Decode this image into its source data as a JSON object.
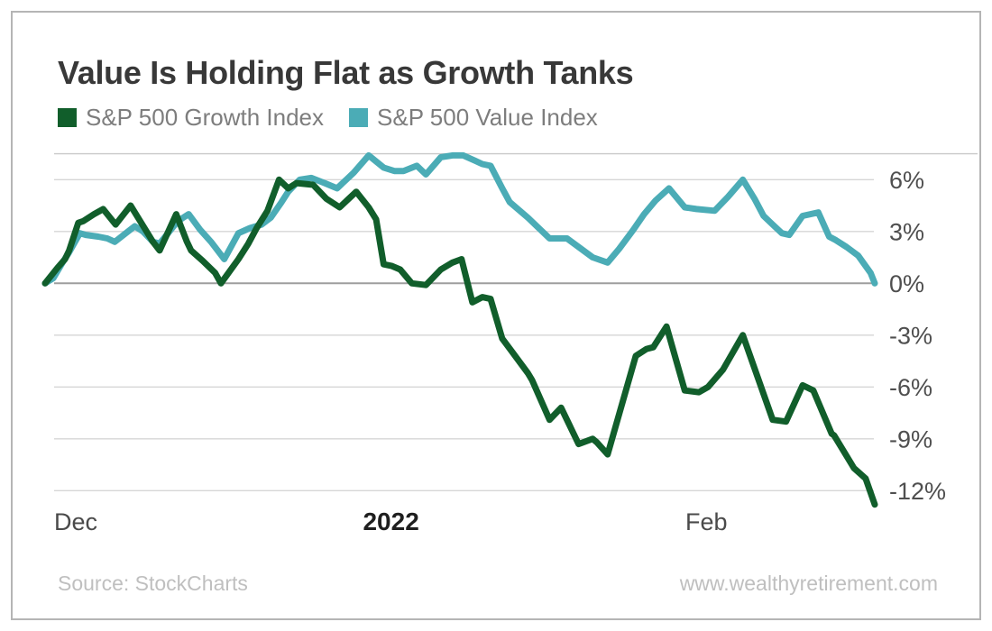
{
  "header": {
    "title": "Value Is Holding Flat as Growth Tanks"
  },
  "footer": {
    "source": "Source: StockCharts",
    "website": "www.wealthyretirement.com"
  },
  "colors": {
    "growth_line": "#115e2b",
    "value_line": "#4bacb6",
    "grid": "#d6d6d6",
    "zero_line": "#9e9e9e",
    "plot_border": "#c9c9c9",
    "title_text": "#383838",
    "legend_text": "#7d7d7d",
    "axis_text": "#4f4f4f",
    "footer_text": "#bfbfbf"
  },
  "chart_data": {
    "type": "line",
    "title": "Value Is Holding Flat as Growth Tanks",
    "xlabel": "",
    "ylabel": "",
    "grid": "horizontal",
    "legend_position": "top-left",
    "x_encoding": "percent_along_time_axis",
    "x_axis": {
      "ticks": [
        {
          "label": "Dec",
          "x": 3.7,
          "bold": false
        },
        {
          "label": "2022",
          "x": 41.7,
          "bold": true
        },
        {
          "label": "Feb",
          "x": 79.7,
          "bold": false
        }
      ]
    },
    "y_axis": {
      "side": "right",
      "ylim": [
        -13,
        7.5
      ],
      "ticks": [
        {
          "value": 6,
          "label": "6%"
        },
        {
          "value": 3,
          "label": "3%"
        },
        {
          "value": 0,
          "label": "0%"
        },
        {
          "value": -3,
          "label": "-3%"
        },
        {
          "value": -6,
          "label": "-6%"
        },
        {
          "value": -9,
          "label": "-9%"
        },
        {
          "value": -12,
          "label": "-12%"
        }
      ]
    },
    "series": [
      {
        "name": "S&P 500 Growth Index",
        "color": "#115e2b",
        "points": [
          [
            0,
            0
          ],
          [
            1.5,
            0.9
          ],
          [
            2.4,
            1.4
          ],
          [
            2.9,
            1.9
          ],
          [
            4,
            3.5
          ],
          [
            4.6,
            3.6
          ],
          [
            5.9,
            4
          ],
          [
            7,
            4.3
          ],
          [
            8.5,
            3.4
          ],
          [
            10.3,
            4.5
          ],
          [
            13,
            2.4
          ],
          [
            13.8,
            1.9
          ],
          [
            15.8,
            4
          ],
          [
            17.1,
            2.4
          ],
          [
            17.6,
            1.9
          ],
          [
            19,
            1.3
          ],
          [
            20.5,
            0.6
          ],
          [
            21.2,
            0
          ],
          [
            23.3,
            1.4
          ],
          [
            24.5,
            2.3
          ],
          [
            25.5,
            3.2
          ],
          [
            26.8,
            4.2
          ],
          [
            28.2,
            6
          ],
          [
            29.3,
            5.5
          ],
          [
            30.3,
            5.8
          ],
          [
            32.3,
            5.7
          ],
          [
            33.9,
            4.9
          ],
          [
            35.5,
            4.4
          ],
          [
            37.5,
            5.3
          ],
          [
            39,
            4.4
          ],
          [
            39.9,
            3.7
          ],
          [
            40.8,
            1.1
          ],
          [
            41.8,
            1
          ],
          [
            42.8,
            0.8
          ],
          [
            44.2,
            0
          ],
          [
            45.9,
            -0.1
          ],
          [
            47.7,
            0.8
          ],
          [
            49.1,
            1.2
          ],
          [
            50.2,
            1.4
          ],
          [
            51.5,
            -1.1
          ],
          [
            52.7,
            -0.8
          ],
          [
            53.7,
            -0.9
          ],
          [
            55.1,
            -3.2
          ],
          [
            56.2,
            -3.9
          ],
          [
            58.2,
            -5.2
          ],
          [
            58.7,
            -5.6
          ],
          [
            60.8,
            -7.9
          ],
          [
            62.2,
            -7.2
          ],
          [
            64.3,
            -9.3
          ],
          [
            66,
            -9
          ],
          [
            66.5,
            -9.2
          ],
          [
            67.8,
            -9.9
          ],
          [
            71.2,
            -4.2
          ],
          [
            72.5,
            -3.8
          ],
          [
            73.3,
            -3.7
          ],
          [
            74.9,
            -2.5
          ],
          [
            77.1,
            -6.2
          ],
          [
            78.8,
            -6.3
          ],
          [
            79.9,
            -6
          ],
          [
            81.7,
            -5
          ],
          [
            84.1,
            -3
          ],
          [
            87.7,
            -7.9
          ],
          [
            89.3,
            -8
          ],
          [
            91.3,
            -5.9
          ],
          [
            92.6,
            -6.2
          ],
          [
            94.8,
            -8.7
          ],
          [
            95.1,
            -8.8
          ],
          [
            97.5,
            -10.7
          ],
          [
            98.9,
            -11.3
          ],
          [
            100,
            -12.8
          ]
        ]
      },
      {
        "name": "S&P 500 Value Index",
        "color": "#4bacb6",
        "points": [
          [
            0,
            0
          ],
          [
            1,
            0.3
          ],
          [
            2.1,
            1.2
          ],
          [
            2.9,
            1.8
          ],
          [
            4.2,
            2.9
          ],
          [
            4.9,
            2.8
          ],
          [
            6.4,
            2.7
          ],
          [
            7.5,
            2.6
          ],
          [
            8.4,
            2.4
          ],
          [
            10,
            3
          ],
          [
            10.8,
            3.3
          ],
          [
            11.8,
            3
          ],
          [
            13,
            2.4
          ],
          [
            13.8,
            2.3
          ],
          [
            16,
            3.6
          ],
          [
            17.3,
            4
          ],
          [
            18.7,
            3.1
          ],
          [
            20,
            2.4
          ],
          [
            21.6,
            1.4
          ],
          [
            23.3,
            2.9
          ],
          [
            24.7,
            3.2
          ],
          [
            26.1,
            3.4
          ],
          [
            27.2,
            3.8
          ],
          [
            28.5,
            4.7
          ],
          [
            29.3,
            5.3
          ],
          [
            30.7,
            6
          ],
          [
            32.1,
            6.1
          ],
          [
            33.7,
            5.8
          ],
          [
            35.2,
            5.5
          ],
          [
            37.2,
            6.4
          ],
          [
            39,
            7.4
          ],
          [
            40.8,
            6.7
          ],
          [
            42.1,
            6.5
          ],
          [
            43.2,
            6.5
          ],
          [
            44.8,
            6.8
          ],
          [
            45.9,
            6.3
          ],
          [
            47.7,
            7.3
          ],
          [
            49.1,
            7.4
          ],
          [
            50.4,
            7.4
          ],
          [
            51.8,
            7.1
          ],
          [
            52.7,
            6.9
          ],
          [
            53.7,
            6.8
          ],
          [
            55.1,
            5.5
          ],
          [
            56,
            4.7
          ],
          [
            58.2,
            3.8
          ],
          [
            59.5,
            3.2
          ],
          [
            60.8,
            2.6
          ],
          [
            62.9,
            2.6
          ],
          [
            64.3,
            2.1
          ],
          [
            66,
            1.5
          ],
          [
            67.8,
            1.2
          ],
          [
            69.2,
            2
          ],
          [
            70.9,
            3.1
          ],
          [
            72.2,
            4
          ],
          [
            73.6,
            4.8
          ],
          [
            75.2,
            5.5
          ],
          [
            77.1,
            4.4
          ],
          [
            78.5,
            4.3
          ],
          [
            80.7,
            4.2
          ],
          [
            82.3,
            5
          ],
          [
            84.1,
            6
          ],
          [
            85.5,
            4.9
          ],
          [
            86.6,
            3.9
          ],
          [
            87.7,
            3.4
          ],
          [
            88.8,
            2.9
          ],
          [
            89.7,
            2.8
          ],
          [
            91.3,
            3.9
          ],
          [
            93.2,
            4.1
          ],
          [
            94.5,
            2.7
          ],
          [
            95.3,
            2.5
          ],
          [
            96.6,
            2.1
          ],
          [
            98,
            1.6
          ],
          [
            99.5,
            0.6
          ],
          [
            100,
            0
          ]
        ]
      }
    ]
  }
}
